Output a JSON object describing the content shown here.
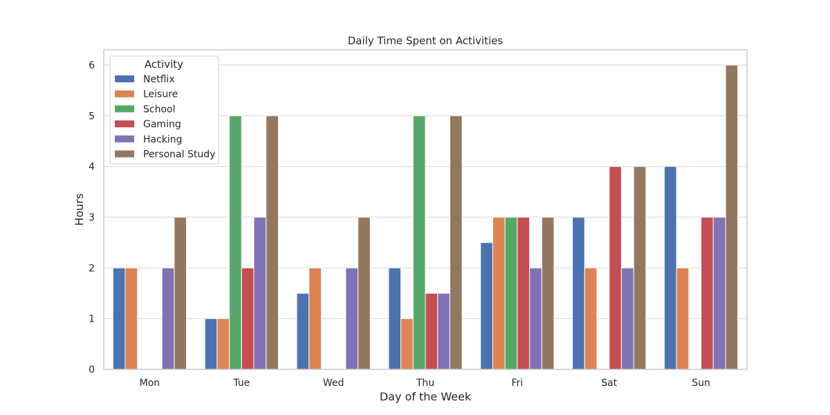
{
  "chart_data": {
    "type": "bar",
    "title": "Daily Time Spent on Activities",
    "xlabel": "Day of the Week",
    "ylabel": "Hours",
    "categories": [
      "Mon",
      "Tue",
      "Wed",
      "Thu",
      "Fri",
      "Sat",
      "Sun"
    ],
    "ylim": [
      0,
      6.3
    ],
    "yticks": [
      0,
      1,
      2,
      3,
      4,
      5,
      6
    ],
    "grid": true,
    "legend": {
      "title": "Activity",
      "placement": "top-left"
    },
    "series": [
      {
        "name": "Netflix",
        "color": "#4c72b0",
        "values": [
          2,
          1,
          1.5,
          2,
          2.5,
          3,
          4
        ]
      },
      {
        "name": "Leisure",
        "color": "#dd8452",
        "values": [
          2,
          1,
          2,
          1,
          3,
          2,
          2
        ]
      },
      {
        "name": "School",
        "color": "#55a868",
        "values": [
          0,
          5,
          0,
          5,
          3,
          0,
          0
        ]
      },
      {
        "name": "Gaming",
        "color": "#c44e52",
        "values": [
          0,
          2,
          0,
          1.5,
          3,
          4,
          3
        ]
      },
      {
        "name": "Hacking",
        "color": "#8172b3",
        "values": [
          2,
          3,
          2,
          1.5,
          2,
          2,
          3
        ]
      },
      {
        "name": "Personal Study",
        "color": "#937860",
        "values": [
          3,
          5,
          3,
          5,
          3,
          4,
          6
        ]
      }
    ]
  }
}
